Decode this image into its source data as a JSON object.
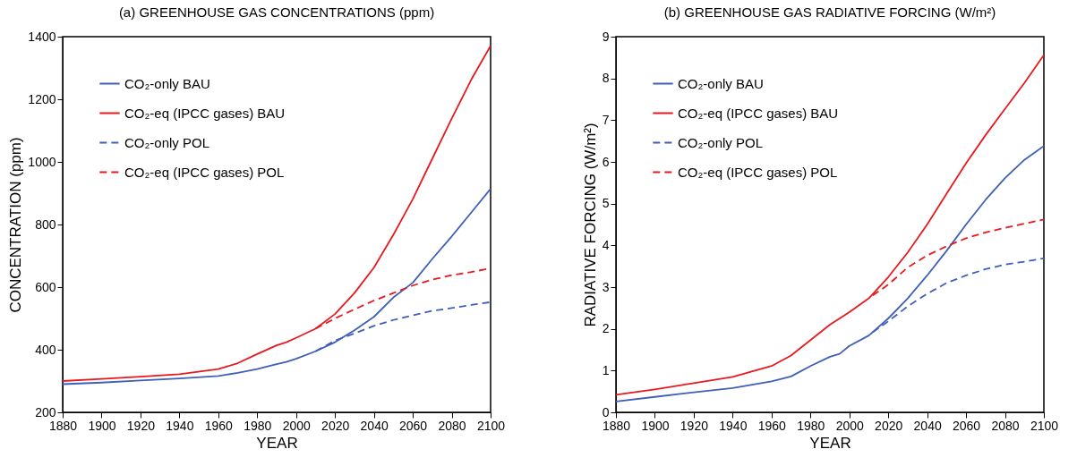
{
  "chart_data": [
    {
      "type": "line",
      "title": "(a) GREENHOUSE GAS CONCENTRATIONS (ppm)",
      "xlabel": "YEAR",
      "ylabel": "CONCENTRATION (ppm)",
      "xlim": [
        1880,
        2100
      ],
      "xticks": [
        1880,
        1900,
        1920,
        1940,
        1960,
        1980,
        2000,
        2020,
        2040,
        2060,
        2080,
        2100
      ],
      "ylim": [
        200,
        1400
      ],
      "yticks": [
        200,
        400,
        600,
        800,
        1000,
        1200,
        1400
      ],
      "grid": false,
      "legend": "top left",
      "marker": "none",
      "series": [
        {
          "name": "CO₂-only BAU",
          "color": "#3f5fb8",
          "line_style": "solid",
          "x": [
            1880,
            1900,
            1920,
            1940,
            1960,
            1970,
            1980,
            1990,
            1995,
            2000,
            2010,
            2020,
            2030,
            2040,
            2050,
            2060,
            2070,
            2080,
            2090,
            2100
          ],
          "values": [
            290,
            295,
            302,
            308,
            316,
            326,
            338,
            354,
            361,
            371,
            395,
            424,
            462,
            505,
            567,
            614,
            690,
            762,
            838,
            914
          ]
        },
        {
          "name": "CO₂-eq (IPCC gases) BAU",
          "color": "#e8191e",
          "line_style": "solid",
          "x": [
            1880,
            1900,
            1920,
            1940,
            1960,
            1970,
            1980,
            1990,
            1995,
            2000,
            2010,
            2020,
            2030,
            2040,
            2050,
            2060,
            2070,
            2080,
            2090,
            2100
          ],
          "values": [
            300,
            307,
            314,
            322,
            338,
            357,
            386,
            414,
            424,
            438,
            467,
            514,
            581,
            662,
            767,
            881,
            1010,
            1138,
            1262,
            1371
          ]
        },
        {
          "name": "CO₂-only POL",
          "color": "#3f5fb8",
          "line_style": "dashed",
          "x": [
            2010,
            2020,
            2030,
            2040,
            2050,
            2060,
            2070,
            2080,
            2090,
            2100
          ],
          "values": [
            395,
            429,
            452,
            476,
            495,
            510,
            524,
            533,
            543,
            552
          ]
        },
        {
          "name": "CO₂-eq (IPCC gases) POL",
          "color": "#e8191e",
          "line_style": "dashed",
          "x": [
            2010,
            2020,
            2030,
            2040,
            2050,
            2060,
            2070,
            2080,
            2090,
            2100
          ],
          "values": [
            467,
            500,
            529,
            557,
            581,
            605,
            624,
            638,
            648,
            660
          ]
        }
      ]
    },
    {
      "type": "line",
      "title": "(b) GREENHOUSE GAS RADIATIVE FORCING (W/m²)",
      "xlabel": "YEAR",
      "ylabel": "RADIATIVE FORCING (W/m²)",
      "xlim": [
        1880,
        2100
      ],
      "xticks": [
        1880,
        1900,
        1920,
        1940,
        1960,
        1980,
        2000,
        2020,
        2040,
        2060,
        2080,
        2100
      ],
      "ylim": [
        0,
        9
      ],
      "yticks": [
        0,
        1,
        2,
        3,
        4,
        5,
        6,
        7,
        8,
        9
      ],
      "grid": false,
      "legend": "top left",
      "marker": "none",
      "series": [
        {
          "name": "CO₂-only BAU",
          "color": "#3f5fb8",
          "line_style": "solid",
          "x": [
            1880,
            1900,
            1920,
            1940,
            1960,
            1970,
            1980,
            1990,
            1995,
            2000,
            2010,
            2020,
            2030,
            2040,
            2050,
            2060,
            2070,
            2080,
            2090,
            2100
          ],
          "values": [
            0.26,
            0.37,
            0.48,
            0.58,
            0.74,
            0.86,
            1.11,
            1.33,
            1.4,
            1.59,
            1.84,
            2.25,
            2.73,
            3.28,
            3.87,
            4.5,
            5.09,
            5.61,
            6.05,
            6.38
          ]
        },
        {
          "name": "CO₂-eq (IPCC gases) BAU",
          "color": "#e8191e",
          "line_style": "solid",
          "x": [
            1880,
            1900,
            1920,
            1940,
            1960,
            1970,
            1980,
            1990,
            1995,
            2000,
            2010,
            2020,
            2030,
            2040,
            2050,
            2060,
            2070,
            2080,
            2090,
            2100
          ],
          "values": [
            0.42,
            0.55,
            0.7,
            0.85,
            1.11,
            1.36,
            1.73,
            2.1,
            2.25,
            2.4,
            2.73,
            3.24,
            3.83,
            4.5,
            5.24,
            5.97,
            6.64,
            7.27,
            7.89,
            8.56
          ]
        },
        {
          "name": "CO₂-only POL",
          "color": "#3f5fb8",
          "line_style": "dashed",
          "x": [
            2012,
            2020,
            2030,
            2040,
            2050,
            2060,
            2070,
            2080,
            2090,
            2100
          ],
          "values": [
            1.92,
            2.18,
            2.54,
            2.84,
            3.1,
            3.28,
            3.43,
            3.54,
            3.61,
            3.69
          ]
        },
        {
          "name": "CO₂-eq (IPCC gases) POL",
          "color": "#e8191e",
          "line_style": "dashed",
          "x": [
            2012,
            2020,
            2030,
            2040,
            2050,
            2060,
            2070,
            2080,
            2090,
            2100
          ],
          "values": [
            2.8,
            3.06,
            3.47,
            3.76,
            3.98,
            4.17,
            4.31,
            4.42,
            4.52,
            4.62
          ]
        }
      ]
    }
  ]
}
